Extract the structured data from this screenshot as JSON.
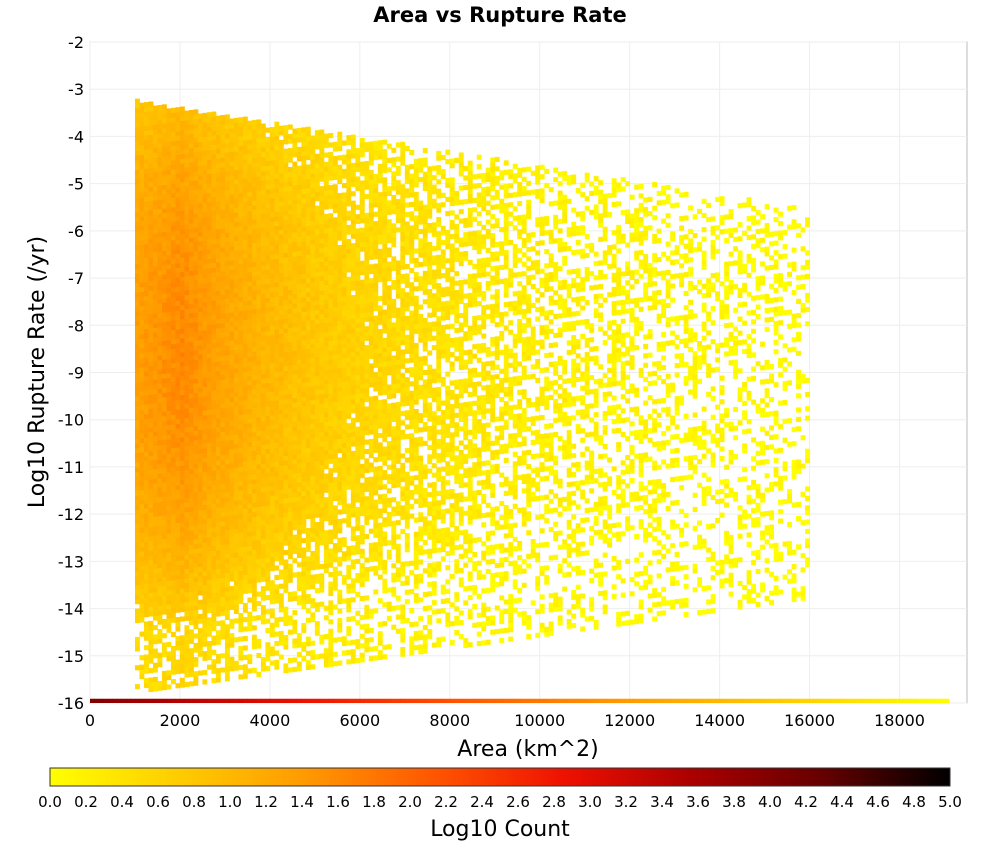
{
  "chart_data": {
    "type": "heatmap",
    "title": "Area vs Rupture Rate",
    "xlabel": "Area (km^2)",
    "ylabel": "Log10 Rupture Rate (/yr)",
    "xlim": [
      0,
      19500
    ],
    "ylim": [
      -16,
      -2
    ],
    "x_ticks": [
      "0",
      "2000",
      "4000",
      "6000",
      "8000",
      "10000",
      "12000",
      "14000",
      "16000",
      "18000"
    ],
    "y_ticks": [
      "-2",
      "-3",
      "-4",
      "-5",
      "-6",
      "-7",
      "-8",
      "-9",
      "-10",
      "-11",
      "-12",
      "-13",
      "-14",
      "-15",
      "-16"
    ],
    "grid": true,
    "bin_width_km2": 100,
    "bin_height_log10": 0.1,
    "colorbar": {
      "label": "Log10 Count",
      "min": 0.0,
      "max": 5.0,
      "ticks": [
        "0.0",
        "0.2",
        "0.4",
        "0.6",
        "0.8",
        "1.0",
        "1.2",
        "1.4",
        "1.6",
        "1.8",
        "2.0",
        "2.2",
        "2.4",
        "2.6",
        "2.8",
        "3.0",
        "3.2",
        "3.4",
        "3.6",
        "3.8",
        "4.0",
        "4.2",
        "4.4",
        "4.6",
        "4.8",
        "5.0"
      ],
      "colors": [
        "#ffff00",
        "#ffcc00",
        "#ff9900",
        "#ff5500",
        "#ee1100",
        "#aa0000",
        "#660000",
        "#000000"
      ]
    },
    "density_profile": {
      "area_start": 1000,
      "area_peak": 2000,
      "rate_center": -8.5,
      "peak_log10_count": 1.6,
      "edge_log10_count": 0.0,
      "area_max": 16000,
      "rate_top_at_min_area": -3.3,
      "rate_bottom_at_min_area": -15.8,
      "rate_top_at_max_area": -5.6,
      "rate_bottom_at_max_area": -13.8
    },
    "bottom_row": {
      "rate": -16,
      "area_start": 0,
      "area_end": 19100,
      "log10_count_start": 4.0,
      "log10_count_end": 0.0
    }
  }
}
